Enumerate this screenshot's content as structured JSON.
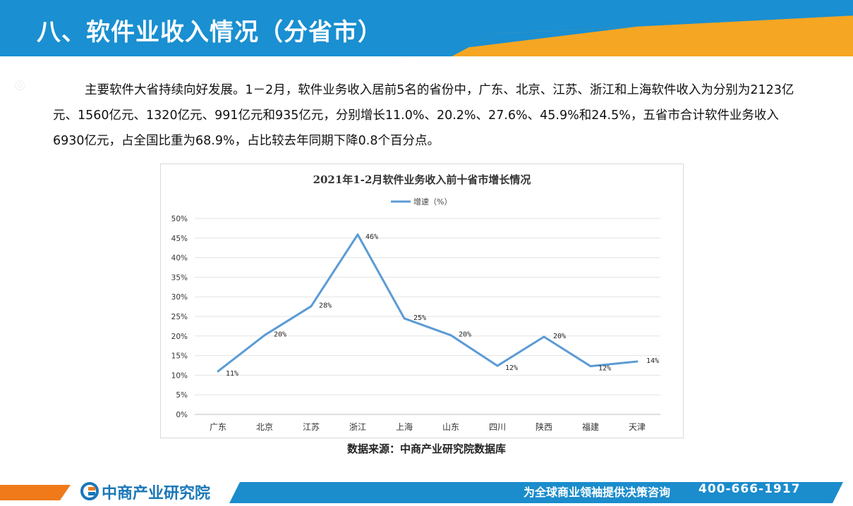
{
  "header": {
    "title": "八、软件业收入情况（分省市）"
  },
  "paragraph": "主要软件大省持续向好发展。1－2月，软件业务收入居前5名的省份中，广东、北京、江苏、浙江和上海软件收入为分别为2123亿元、1560亿元、1320亿元、991亿元和935亿元，分别增长11.0%、20.2%、27.6%、45.9%和24.5%，五省市合计软件业务收入6930亿元，占全国比重为68.9%，占比较去年同期下降0.8个百分点。",
  "chart_data": {
    "type": "line",
    "title": "2021年1-2月软件业务收入前十省市增长情况",
    "legend_position": "top",
    "grid": true,
    "categories": [
      "广东",
      "北京",
      "江苏",
      "浙江",
      "上海",
      "山东",
      "四川",
      "陕西",
      "福建",
      "天津"
    ],
    "series": [
      {
        "name": "增速（%）",
        "color": "#5b9bd5",
        "values": [
          11.0,
          20.2,
          27.6,
          45.9,
          24.5,
          20.2,
          12.4,
          19.8,
          12.3,
          13.5
        ],
        "labels": [
          "11%",
          "20%",
          "28%",
          "46%",
          "25%",
          "20%",
          "12%",
          "20%",
          "12%",
          "14%"
        ]
      }
    ],
    "ylim": [
      0,
      50
    ],
    "yticks": [
      "0%",
      "5%",
      "10%",
      "15%",
      "20%",
      "25%",
      "30%",
      "35%",
      "40%",
      "45%",
      "50%"
    ]
  },
  "source": "数据来源：中商产业研究院数据库",
  "footer": {
    "logo": "中商产业研究院",
    "slogan": "为全球商业领袖提供决策咨询",
    "phone": "400-666-1917"
  },
  "colors": {
    "header_blue": "#1a8fd1",
    "accent_orange": "#f5a623",
    "footer_orange": "#f07a1a",
    "footer_blue": "#1b8ccc"
  }
}
